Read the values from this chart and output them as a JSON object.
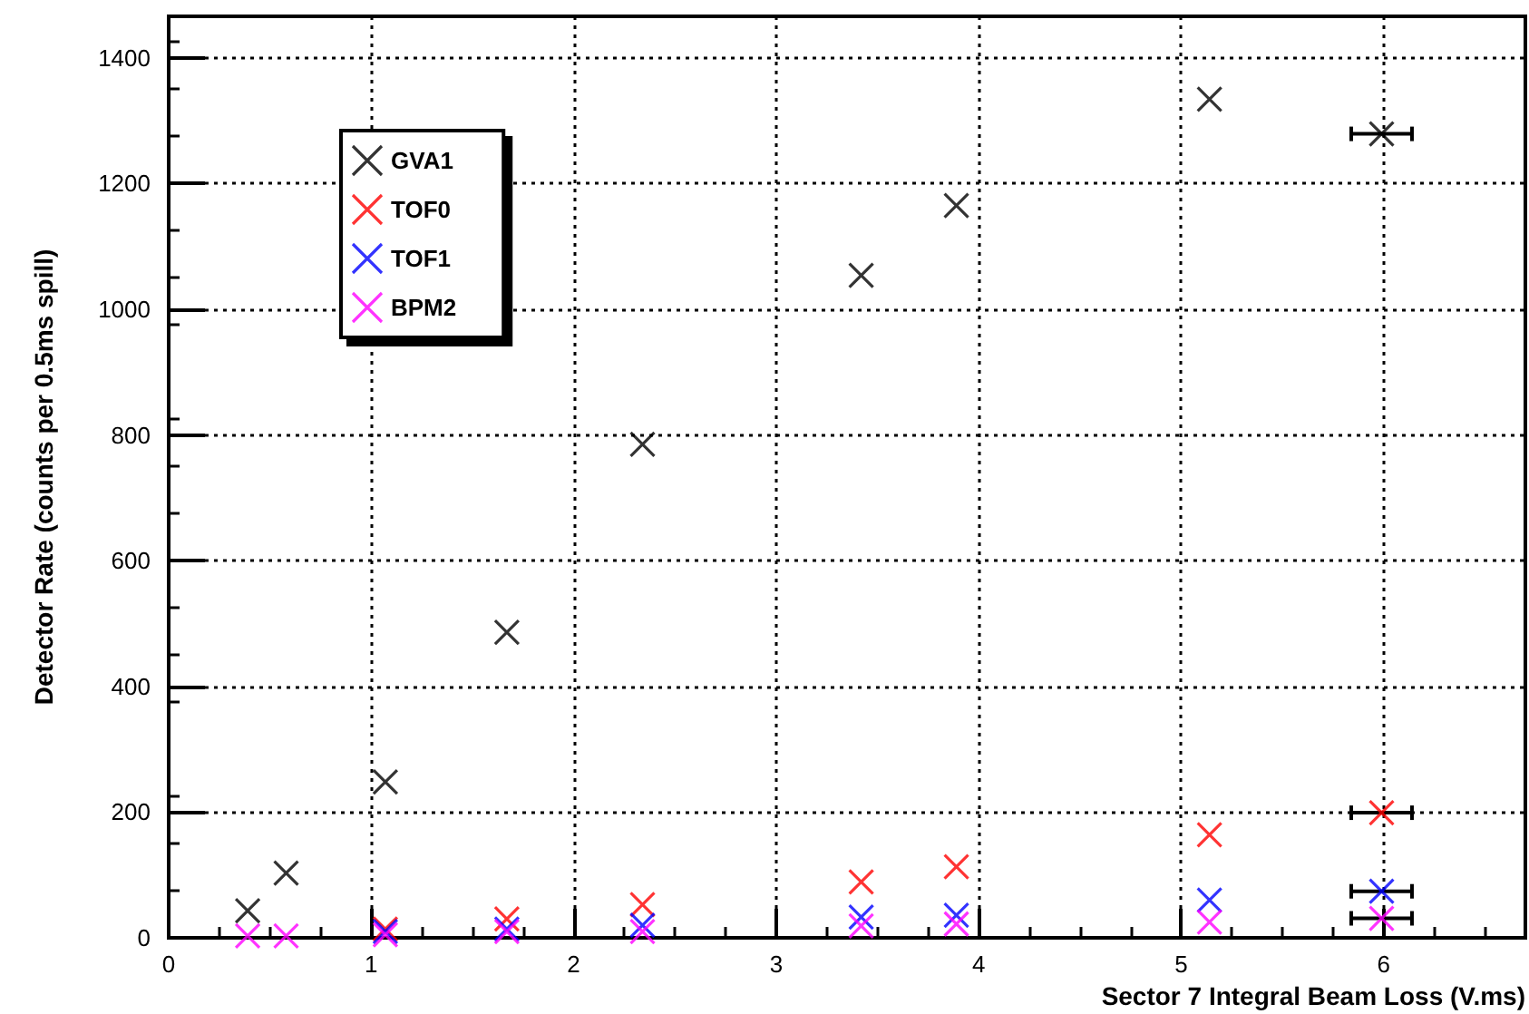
{
  "chart_data": {
    "type": "scatter",
    "xlabel": "Sector 7 Integral Beam Loss (V.ms)",
    "ylabel": "Detector Rate (counts per 0.5ms spill)",
    "x": [
      0.39,
      0.58,
      1.07,
      1.67,
      2.34,
      3.42,
      3.89,
      5.14,
      5.99
    ],
    "series": [
      {
        "name": "GVA1",
        "color": "#000000",
        "values": [
          43,
          103,
          248,
          486,
          785,
          1054,
          1165,
          1334,
          1279
        ],
        "xerrors": [
          null,
          null,
          null,
          null,
          null,
          null,
          null,
          null,
          0.15
        ]
      },
      {
        "name": "TOF0",
        "color": "#ff0000",
        "values": [
          null,
          null,
          14,
          30,
          53,
          89,
          113,
          164,
          199
        ],
        "xerrors": [
          null,
          null,
          null,
          null,
          null,
          null,
          null,
          null,
          0.15
        ]
      },
      {
        "name": "TOF1",
        "color": "#0000ff",
        "values": [
          null,
          null,
          10,
          14,
          20,
          33,
          36,
          60,
          74
        ],
        "xerrors": [
          null,
          null,
          null,
          null,
          null,
          null,
          null,
          null,
          0.15
        ]
      },
      {
        "name": "BPM2",
        "color": "#ff00ff",
        "values": [
          3,
          3,
          5,
          10,
          10,
          19,
          22,
          25,
          31
        ],
        "xerrors": [
          null,
          null,
          null,
          null,
          null,
          null,
          null,
          null,
          0.15
        ]
      }
    ],
    "xlim": [
      0,
      6.7
    ],
    "xticks": [
      0,
      1,
      2,
      3,
      4,
      5,
      6
    ],
    "ylim": [
      0,
      1466
    ],
    "yticks": [
      0,
      200,
      400,
      600,
      800,
      1000,
      1200,
      1400
    ],
    "grid": true,
    "legend": "top left",
    "marker": "cross"
  }
}
